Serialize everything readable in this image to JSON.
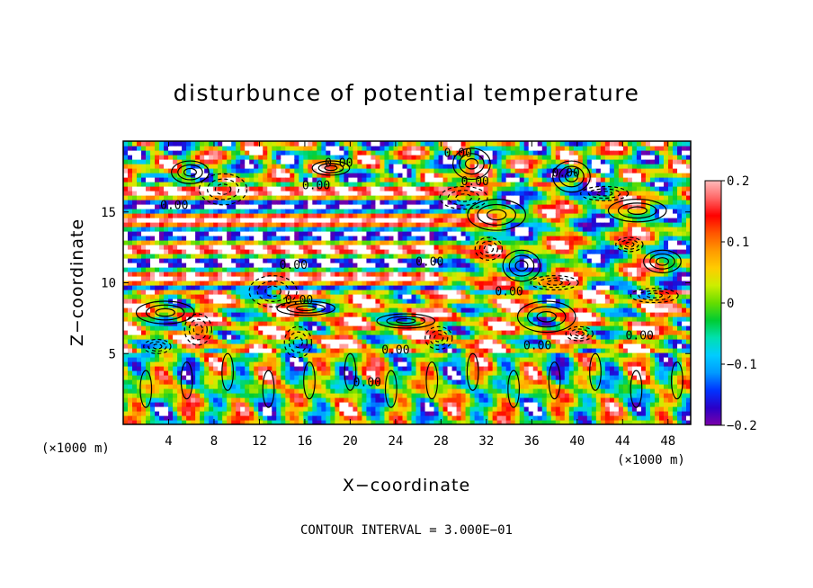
{
  "chart_data": {
    "type": "heatmap",
    "title": "disturbunce of potential temperature",
    "xlabel": "X−coordinate",
    "ylabel": "Z−coordinate",
    "x_unit_label": "(×1000 m)",
    "z_unit_label": "(×1000 m)",
    "xlim": [
      0,
      50
    ],
    "ylim": [
      0,
      20
    ],
    "x_ticks": [
      4,
      8,
      12,
      16,
      20,
      24,
      28,
      32,
      36,
      40,
      44,
      48
    ],
    "y_ticks": [
      5,
      10,
      15
    ],
    "colorbar": {
      "range": [
        -0.2,
        0.2
      ],
      "ticks": [
        {
          "value": 0.2,
          "label": "0.2"
        },
        {
          "value": 0.1,
          "label": "0.1"
        },
        {
          "value": 0,
          "label": "0"
        },
        {
          "value": -0.1,
          "label": "−0.1"
        },
        {
          "value": -0.2,
          "label": "−0.2"
        }
      ],
      "colors": [
        "#7b00a8",
        "#2a00c8",
        "#0033ff",
        "#0099ff",
        "#00ccff",
        "#00e0b0",
        "#00cc33",
        "#66dd00",
        "#ccee00",
        "#ffcc00",
        "#ff9900",
        "#ff5500",
        "#ff0000",
        "#ff6666",
        "#ffbbbb"
      ]
    },
    "contour_labels": [
      {
        "x": 19,
        "z": 18.2,
        "text": "0.00"
      },
      {
        "x": 17,
        "z": 16.6,
        "text": "0.00"
      },
      {
        "x": 4.5,
        "z": 15.2,
        "text": "0.00"
      },
      {
        "x": 29.5,
        "z": 18.9,
        "text": "0.00"
      },
      {
        "x": 31,
        "z": 16.9,
        "text": "0.00"
      },
      {
        "x": 39,
        "z": 17.5,
        "text": "0.00"
      },
      {
        "x": 15,
        "z": 11.0,
        "text": "0.00"
      },
      {
        "x": 27,
        "z": 11.2,
        "text": "0.00"
      },
      {
        "x": 15.5,
        "z": 8.5,
        "text": "0.00"
      },
      {
        "x": 34,
        "z": 9.1,
        "text": "0.00"
      },
      {
        "x": 24,
        "z": 5.0,
        "text": "0.00"
      },
      {
        "x": 36.5,
        "z": 5.3,
        "text": "0.00"
      },
      {
        "x": 45.5,
        "z": 6.0,
        "text": "0.00"
      },
      {
        "x": 21.5,
        "z": 2.7,
        "text": "0.00"
      }
    ],
    "contour_interval_label": "CONTOUR INTERVAL = 3.000E−01"
  }
}
